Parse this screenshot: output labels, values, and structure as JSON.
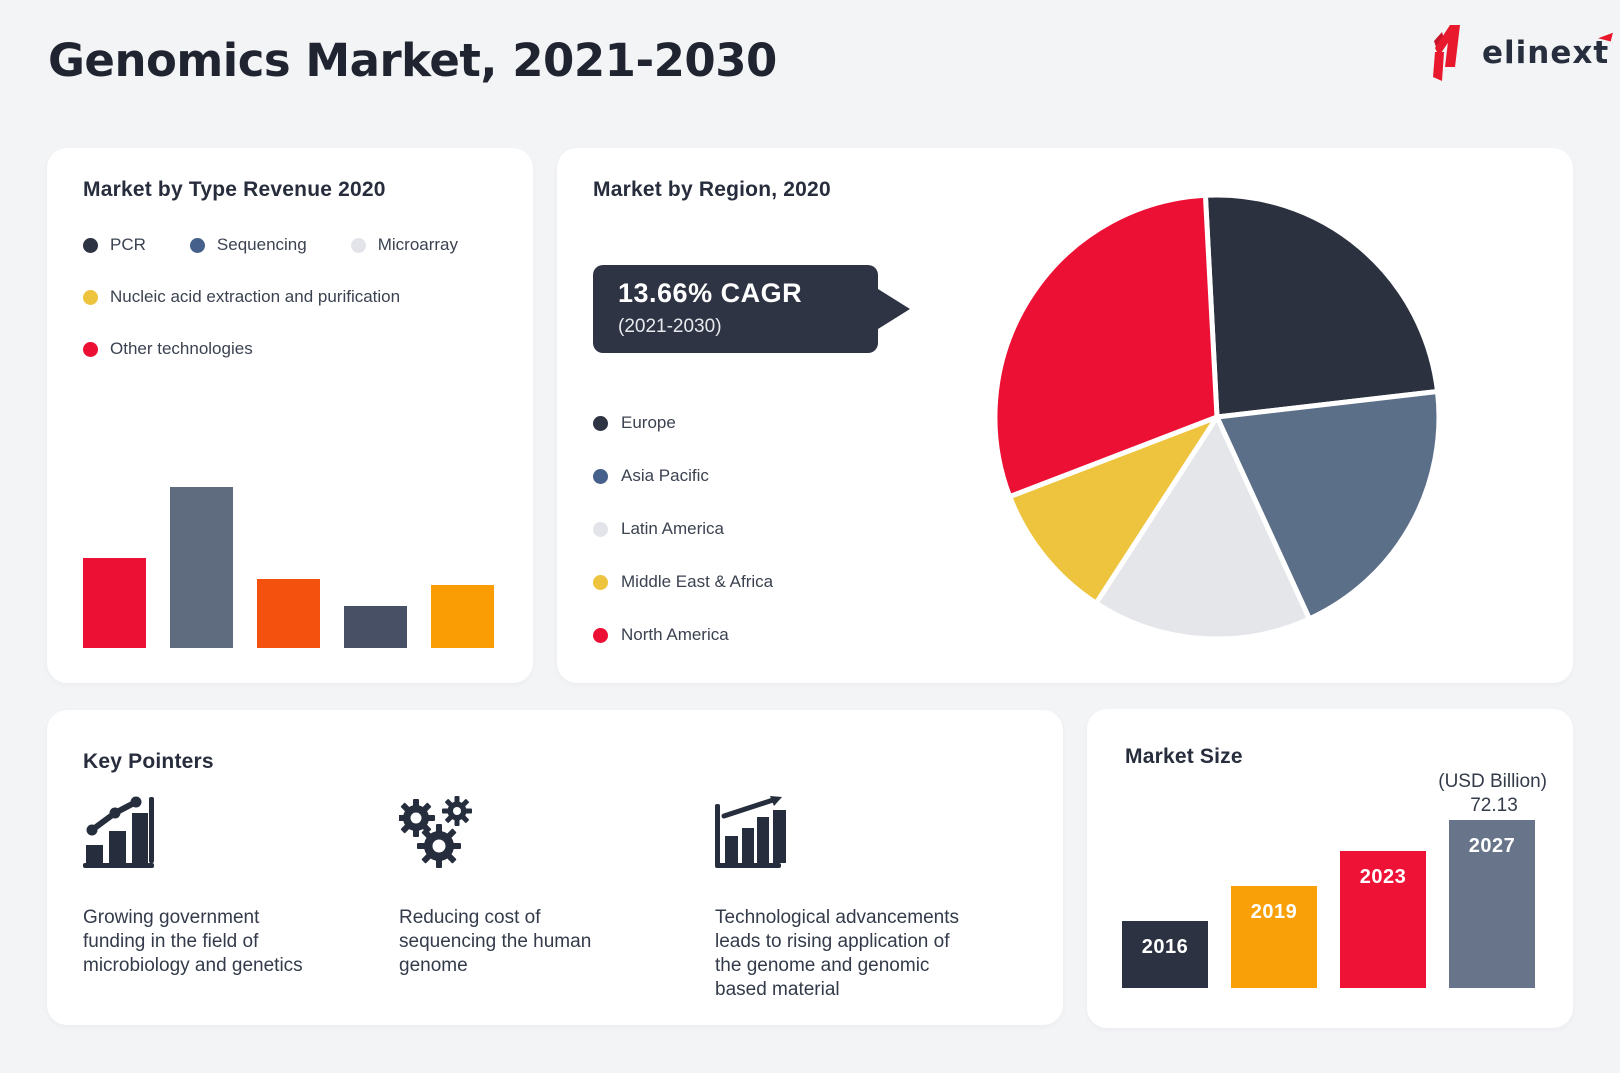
{
  "page": {
    "title": "Genomics Market, 2021-2030",
    "background": "#f3f4f6"
  },
  "logo": {
    "text": "elinext",
    "mark_color": "#e8192c",
    "mark_color_dark": "#c8142a",
    "text_color": "#272e3d",
    "accent_color": "#e8192c"
  },
  "market_by_type": {
    "title": "Market by Type Revenue 2020",
    "legend": [
      {
        "label": "PCR",
        "color": "#2e3443"
      },
      {
        "label": "Sequencing",
        "color": "#45608a"
      },
      {
        "label": "Microarray",
        "color": "#e3e4e9"
      },
      {
        "label": "Nucleic acid extraction and purification",
        "color": "#eec43e"
      },
      {
        "label": "Other technologies",
        "color": "#ec1034"
      }
    ]
  },
  "market_by_region": {
    "title": "Market by Region, 2020",
    "cagr": {
      "headline": "13.66% CAGR",
      "subline": "(2021-2030)",
      "box_color": "#2e3444"
    },
    "legend": [
      {
        "label": "Europe",
        "color": "#2e3443"
      },
      {
        "label": "Asia Pacific",
        "color": "#45608a"
      },
      {
        "label": "Latin America",
        "color": "#e3e4e9"
      },
      {
        "label": "Middle East & Africa",
        "color": "#eec43e"
      },
      {
        "label": "North America",
        "color": "#ec1034"
      }
    ]
  },
  "key_pointers": {
    "title": "Key Pointers",
    "items": [
      {
        "icon": "growth-trend-chart-icon",
        "text": "Growing government\nfunding in the field of\nmicrobiology and genetics"
      },
      {
        "icon": "gears-icon",
        "text": "Reducing cost of\nsequencing the human\ngenome"
      },
      {
        "icon": "rising-bars-arrow-icon",
        "text": "Technological advancements\nleads to rising application of\nthe genome and genomic\nbased material"
      }
    ]
  },
  "market_size": {
    "title": "Market Size",
    "unit_label": "(USD Billion)",
    "peak_value": "72.13"
  },
  "chart_data": [
    {
      "id": "type_revenue_bars",
      "type": "bar",
      "title": "Market by Type Revenue 2020",
      "categories": [
        "PCR",
        "Sequencing",
        "Microarray",
        "Nucleic acid extraction and purification",
        "Other technologies"
      ],
      "values_relative_est": [
        56,
        100,
        43,
        26,
        39
      ],
      "bar_colors_displayed": [
        "#ec1034",
        "#5f6c80",
        "#f4500e",
        "#475064",
        "#fa9d04"
      ],
      "axes_shown": false,
      "value_labels_shown": false
    },
    {
      "id": "region_pie",
      "type": "pie",
      "title": "Market by Region, 2020",
      "start_angle_deg": -3,
      "slices": [
        {
          "label": "Europe",
          "percent_est": 24,
          "color": "#2c3140"
        },
        {
          "label": "Asia Pacific",
          "percent_est": 20,
          "color": "#5c6f88"
        },
        {
          "label": "Latin America",
          "percent_est": 16,
          "color": "#e4e6ea"
        },
        {
          "label": "Middle East & Africa",
          "percent_est": 10,
          "color": "#eec43e"
        },
        {
          "label": "North America",
          "percent_est": 30,
          "color": "#ec1034"
        }
      ],
      "annotation": "13.66% CAGR (2021-2030)",
      "legend_position": "left"
    },
    {
      "id": "market_size_bars",
      "type": "bar",
      "title": "Market Size",
      "unit": "USD Billion",
      "categories": [
        "2016",
        "2019",
        "2023",
        "2027"
      ],
      "values_usd_billion_est": [
        28.6,
        43.8,
        58.8,
        72.13
      ],
      "labeled_values": {
        "2027": 72.13
      },
      "colors": [
        "#2c3242",
        "#f9a008",
        "#ed1236",
        "#68748a"
      ]
    }
  ]
}
